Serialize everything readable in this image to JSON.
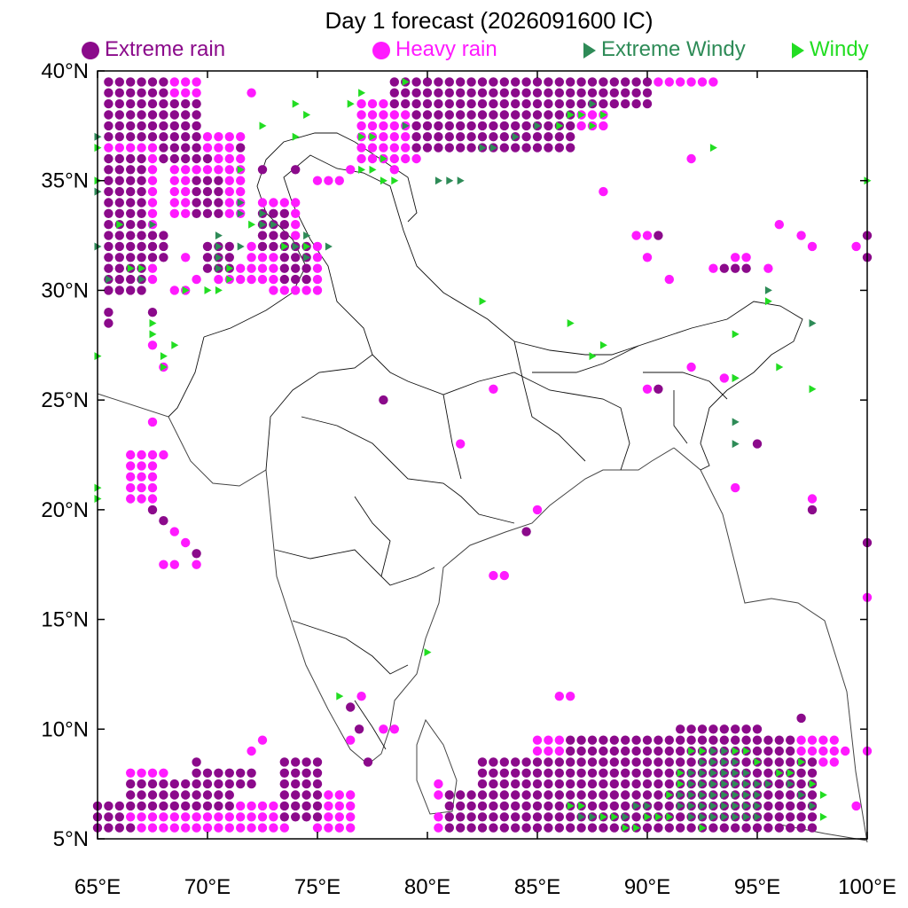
{
  "title": "Day 1 forecast (2026091600 IC)",
  "legend": [
    {
      "key": "extreme_rain",
      "label": "Extreme rain",
      "marker": "circle",
      "color": "#8b0a8b"
    },
    {
      "key": "heavy_rain",
      "label": "Heavy rain",
      "marker": "circle",
      "color": "#ff1aff"
    },
    {
      "key": "extreme_windy",
      "label": "Extreme Windy",
      "marker": "triangle",
      "color": "#2e8b57"
    },
    {
      "key": "windy",
      "label": "Windy",
      "marker": "triangle",
      "color": "#22dd22"
    }
  ],
  "map": {
    "lon_range": [
      65,
      100
    ],
    "lat_range": [
      5,
      40
    ],
    "x_ticks": [
      {
        "value": 65,
        "label": "65°E"
      },
      {
        "value": 70,
        "label": "70°E"
      },
      {
        "value": 75,
        "label": "75°E"
      },
      {
        "value": 80,
        "label": "80°E"
      },
      {
        "value": 85,
        "label": "85°E"
      },
      {
        "value": 90,
        "label": "90°E"
      },
      {
        "value": 95,
        "label": "95°E"
      },
      {
        "value": 100,
        "label": "100°E"
      }
    ],
    "y_ticks": [
      {
        "value": 40,
        "label": "40°N"
      },
      {
        "value": 35,
        "label": "35°N"
      },
      {
        "value": 30,
        "label": "30°N"
      },
      {
        "value": 25,
        "label": "25°N"
      },
      {
        "value": 20,
        "label": "20°N"
      },
      {
        "value": 15,
        "label": "15°N"
      },
      {
        "value": 10,
        "label": "10°N"
      },
      {
        "value": 5,
        "label": "5°N"
      }
    ],
    "grid_step_deg": 0.5
  },
  "markers": {
    "extreme_rain_rects": [
      [
        65.5,
        68.0,
        37.0,
        39.5
      ],
      [
        68.0,
        69.5,
        36.0,
        38.5
      ],
      [
        65.5,
        67.0,
        30.0,
        36.0
      ],
      [
        66.0,
        68.0,
        31.5,
        32.5
      ],
      [
        69.5,
        70.5,
        33.5,
        35.0
      ],
      [
        73.5,
        74.5,
        30.5,
        32.0
      ],
      [
        72.5,
        73.5,
        32.0,
        33.5
      ],
      [
        70.0,
        71.0,
        31.0,
        32.0
      ],
      [
        78.5,
        90.0,
        38.5,
        39.5
      ],
      [
        79.5,
        86.5,
        36.5,
        38.0
      ],
      [
        81.0,
        97.5,
        5.5,
        7.0
      ],
      [
        82.5,
        97.5,
        7.0,
        8.5
      ],
      [
        86.5,
        96.5,
        8.5,
        9.5
      ],
      [
        91.5,
        95.0,
        9.5,
        10.0
      ],
      [
        65.0,
        66.0,
        5.5,
        6.5
      ],
      [
        66.5,
        71.0,
        6.5,
        7.5
      ],
      [
        69.5,
        72.0,
        7.5,
        8.0
      ],
      [
        73.5,
        75.0,
        6.0,
        8.5
      ]
    ],
    "extreme_rain_points": [
      [
        65.5,
        29.0
      ],
      [
        65.5,
        28.5
      ],
      [
        67.5,
        29.0
      ],
      [
        72.5,
        35.5
      ],
      [
        74.0,
        35.5
      ],
      [
        78.0,
        25.0
      ],
      [
        84.5,
        19.0
      ],
      [
        90.5,
        32.5
      ],
      [
        93.5,
        31.0
      ],
      [
        94.0,
        31.0
      ],
      [
        94.5,
        31.0
      ],
      [
        95.0,
        23.0
      ],
      [
        97.5,
        20.0
      ],
      [
        100.0,
        32.5
      ],
      [
        100.0,
        31.5
      ],
      [
        100.0,
        18.5
      ],
      [
        76.5,
        11.0
      ],
      [
        76.9,
        10.0
      ],
      [
        77.3,
        8.5
      ],
      [
        97.0,
        10.5
      ],
      [
        67.5,
        20.0
      ],
      [
        68.0,
        19.5
      ],
      [
        69.5,
        18.0
      ],
      [
        90.5,
        25.5
      ],
      [
        69.5,
        8.5
      ],
      [
        66.5,
        5.5
      ],
      [
        71.5,
        36.5
      ],
      [
        70.0,
        36.0
      ]
    ],
    "heavy_rain_rects": [
      [
        68.0,
        69.5,
        39.0,
        39.5
      ],
      [
        65.5,
        67.5,
        35.0,
        36.5
      ],
      [
        66.0,
        67.5,
        30.5,
        34.5
      ],
      [
        68.5,
        71.5,
        33.5,
        37.0
      ],
      [
        72.5,
        74.0,
        32.5,
        34.0
      ],
      [
        72.0,
        75.0,
        30.5,
        32.0
      ],
      [
        73.0,
        75.0,
        30.0,
        30.5
      ],
      [
        70.5,
        72.0,
        30.5,
        31.0
      ],
      [
        78.5,
        82.5,
        39.0,
        39.5
      ],
      [
        77.0,
        79.5,
        36.0,
        38.5
      ],
      [
        85.0,
        88.0,
        37.5,
        38.5
      ],
      [
        90.0,
        93.0,
        39.5,
        39.5
      ],
      [
        66.5,
        67.5,
        20.5,
        22.5
      ],
      [
        80.5,
        97.5,
        5.5,
        6.0
      ],
      [
        82.5,
        91.0,
        7.0,
        8.0
      ],
      [
        85.0,
        92.0,
        8.5,
        9.5
      ],
      [
        94.0,
        98.5,
        8.5,
        9.5
      ],
      [
        65.0,
        72.5,
        5.5,
        6.5
      ],
      [
        66.5,
        68.0,
        7.0,
        8.0
      ],
      [
        75.0,
        76.5,
        5.5,
        7.0
      ],
      [
        72.0,
        73.5,
        5.5,
        6.5
      ]
    ],
    "heavy_rain_points": [
      [
        72.0,
        39.0
      ],
      [
        68.0,
        26.5
      ],
      [
        67.5,
        27.5
      ],
      [
        67.5,
        24.0
      ],
      [
        68.0,
        22.5
      ],
      [
        68.5,
        19.0
      ],
      [
        69.0,
        18.5
      ],
      [
        68.0,
        17.5
      ],
      [
        68.5,
        17.5
      ],
      [
        69.5,
        17.5
      ],
      [
        75.5,
        35.0
      ],
      [
        76.0,
        35.0
      ],
      [
        76.5,
        35.5
      ],
      [
        75.0,
        35.0
      ],
      [
        77.5,
        37.0
      ],
      [
        78.5,
        35.5
      ],
      [
        88.0,
        34.5
      ],
      [
        92.0,
        36.0
      ],
      [
        96.0,
        33.0
      ],
      [
        97.0,
        32.5
      ],
      [
        97.5,
        32.0
      ],
      [
        99.5,
        32.0
      ],
      [
        89.5,
        32.5
      ],
      [
        90.0,
        32.5
      ],
      [
        90.0,
        31.5
      ],
      [
        91.0,
        30.5
      ],
      [
        93.0,
        31.0
      ],
      [
        94.0,
        31.5
      ],
      [
        94.5,
        31.5
      ],
      [
        95.5,
        31.0
      ],
      [
        83.0,
        25.5
      ],
      [
        81.5,
        23.0
      ],
      [
        85.0,
        20.0
      ],
      [
        83.0,
        17.0
      ],
      [
        83.5,
        17.0
      ],
      [
        92.0,
        26.5
      ],
      [
        93.5,
        26.0
      ],
      [
        90.0,
        25.5
      ],
      [
        94.0,
        21.0
      ],
      [
        97.5,
        20.5
      ],
      [
        100.0,
        16.0
      ],
      [
        86.0,
        11.5
      ],
      [
        86.5,
        11.5
      ],
      [
        76.5,
        9.5
      ],
      [
        77.0,
        11.5
      ],
      [
        78.0,
        10.0
      ],
      [
        78.5,
        10.0
      ],
      [
        72.5,
        9.5
      ],
      [
        72.0,
        9.0
      ],
      [
        80.5,
        7.5
      ],
      [
        80.5,
        7.0
      ],
      [
        99.5,
        6.5
      ],
      [
        99.0,
        9.0
      ],
      [
        100.0,
        9.0
      ],
      [
        68.5,
        30.0
      ],
      [
        69.0,
        30.0
      ],
      [
        69.5,
        30.5
      ],
      [
        67.5,
        31.5
      ],
      [
        67.0,
        30.5
      ],
      [
        69.0,
        31.5
      ],
      [
        68.0,
        32.0
      ]
    ],
    "extreme_windy_points": [
      [
        65.0,
        37.0
      ],
      [
        65.0,
        34.5
      ],
      [
        65.0,
        32.0
      ],
      [
        66.0,
        33.0
      ],
      [
        65.5,
        30.5
      ],
      [
        67.0,
        30.5
      ],
      [
        67.5,
        33.0
      ],
      [
        71.5,
        34.0
      ],
      [
        71.5,
        33.5
      ],
      [
        70.5,
        32.5
      ],
      [
        70.5,
        32.0
      ],
      [
        71.5,
        32.0
      ],
      [
        70.5,
        31.5
      ],
      [
        70.5,
        31.0
      ],
      [
        72.5,
        33.5
      ],
      [
        73.0,
        33.0
      ],
      [
        72.5,
        33.0
      ],
      [
        73.5,
        32.0
      ],
      [
        74.0,
        32.0
      ],
      [
        74.5,
        31.5
      ],
      [
        74.5,
        32.5
      ],
      [
        75.5,
        32.0
      ],
      [
        79.0,
        37.5
      ],
      [
        80.5,
        35.0
      ],
      [
        81.0,
        35.0
      ],
      [
        81.5,
        35.0
      ],
      [
        82.5,
        36.5
      ],
      [
        83.0,
        36.5
      ],
      [
        84.0,
        37.0
      ],
      [
        86.5,
        38.0
      ],
      [
        87.5,
        38.5
      ],
      [
        95.5,
        30.0
      ],
      [
        97.5,
        28.5
      ],
      [
        94.0,
        26.0
      ],
      [
        94.0,
        23.0
      ],
      [
        94.0,
        24.0
      ],
      [
        85.0,
        37.5
      ],
      [
        91.5,
        7.0
      ],
      [
        92.0,
        7.0
      ],
      [
        92.5,
        7.0
      ],
      [
        93.0,
        7.0
      ],
      [
        93.5,
        7.0
      ],
      [
        94.0,
        7.0
      ],
      [
        94.5,
        7.0
      ],
      [
        95.0,
        7.0
      ],
      [
        91.5,
        6.5
      ],
      [
        92.0,
        6.5
      ],
      [
        92.5,
        6.5
      ],
      [
        93.0,
        6.5
      ],
      [
        93.5,
        6.5
      ],
      [
        94.0,
        6.5
      ],
      [
        94.5,
        6.5
      ],
      [
        95.0,
        6.5
      ],
      [
        92.0,
        7.5
      ],
      [
        92.5,
        7.5
      ],
      [
        93.0,
        7.5
      ],
      [
        93.5,
        7.5
      ],
      [
        94.0,
        7.5
      ],
      [
        94.5,
        7.5
      ],
      [
        95.0,
        7.5
      ],
      [
        95.5,
        7.5
      ],
      [
        92.0,
        8.0
      ],
      [
        92.5,
        8.0
      ],
      [
        93.0,
        8.0
      ],
      [
        93.5,
        8.0
      ],
      [
        94.0,
        8.0
      ],
      [
        94.5,
        8.0
      ],
      [
        92.5,
        8.5
      ],
      [
        93.0,
        8.5
      ],
      [
        93.5,
        8.5
      ],
      [
        94.0,
        8.5
      ],
      [
        93.0,
        9.0
      ],
      [
        93.5,
        9.0
      ],
      [
        92.0,
        6.0
      ],
      [
        92.5,
        6.0
      ],
      [
        93.0,
        6.0
      ],
      [
        93.5,
        6.0
      ],
      [
        94.0,
        6.0
      ],
      [
        94.5,
        6.0
      ],
      [
        95.0,
        6.0
      ],
      [
        96.5,
        7.5
      ],
      [
        97.0,
        7.0
      ],
      [
        97.5,
        6.5
      ],
      [
        89.0,
        6.0
      ],
      [
        89.5,
        6.5
      ],
      [
        90.0,
        6.5
      ],
      [
        87.0,
        6.0
      ],
      [
        87.5,
        6.0
      ]
    ],
    "windy_points": [
      [
        65.0,
        36.5
      ],
      [
        65.0,
        35.0
      ],
      [
        66.0,
        33.0
      ],
      [
        66.5,
        31.0
      ],
      [
        67.5,
        28.5
      ],
      [
        67.5,
        28.0
      ],
      [
        68.0,
        27.0
      ],
      [
        68.5,
        27.5
      ],
      [
        68.0,
        26.5
      ],
      [
        72.5,
        37.5
      ],
      [
        74.0,
        37.0
      ],
      [
        74.0,
        38.5
      ],
      [
        74.5,
        38.0
      ],
      [
        76.5,
        38.5
      ],
      [
        77.0,
        39.0
      ],
      [
        77.0,
        37.0
      ],
      [
        77.5,
        37.0
      ],
      [
        78.0,
        36.0
      ],
      [
        77.0,
        35.5
      ],
      [
        77.5,
        35.5
      ],
      [
        78.0,
        35.0
      ],
      [
        78.5,
        35.0
      ],
      [
        79.0,
        39.5
      ],
      [
        86.0,
        37.5
      ],
      [
        86.5,
        38.0
      ],
      [
        87.0,
        38.0
      ],
      [
        88.0,
        38.0
      ],
      [
        87.5,
        37.5
      ],
      [
        93.0,
        36.5
      ],
      [
        69.0,
        30.0
      ],
      [
        70.0,
        30.0
      ],
      [
        70.5,
        30.0
      ],
      [
        71.0,
        30.5
      ],
      [
        71.0,
        31.0
      ],
      [
        67.0,
        31.0
      ],
      [
        72.0,
        33.0
      ],
      [
        71.5,
        35.5
      ],
      [
        73.5,
        32.0
      ],
      [
        74.5,
        32.0
      ],
      [
        82.5,
        29.5
      ],
      [
        86.5,
        28.5
      ],
      [
        87.5,
        27.0
      ],
      [
        88.0,
        27.5
      ],
      [
        94.0,
        26.0
      ],
      [
        96.0,
        26.5
      ],
      [
        97.5,
        25.5
      ],
      [
        95.5,
        29.5
      ],
      [
        94.0,
        28.0
      ],
      [
        65.0,
        27.0
      ],
      [
        65.0,
        21.0
      ],
      [
        65.0,
        20.5
      ],
      [
        76.0,
        11.5
      ],
      [
        80.0,
        13.5
      ],
      [
        100.0,
        35.0
      ],
      [
        86.5,
        6.5
      ],
      [
        87.0,
        6.5
      ],
      [
        88.0,
        6.0
      ],
      [
        88.5,
        6.0
      ],
      [
        89.0,
        5.5
      ],
      [
        89.5,
        5.5
      ],
      [
        90.0,
        6.0
      ],
      [
        90.5,
        6.0
      ],
      [
        91.0,
        6.0
      ],
      [
        92.0,
        9.0
      ],
      [
        92.5,
        9.0
      ],
      [
        94.0,
        9.0
      ],
      [
        94.5,
        9.0
      ],
      [
        95.0,
        8.5
      ],
      [
        96.0,
        8.0
      ],
      [
        96.5,
        8.0
      ],
      [
        97.0,
        8.5
      ],
      [
        97.5,
        7.5
      ],
      [
        98.0,
        7.0
      ],
      [
        98.0,
        6.0
      ],
      [
        91.5,
        8.0
      ],
      [
        91.5,
        7.5
      ],
      [
        91.0,
        7.0
      ],
      [
        92.5,
        5.5
      ]
    ]
  }
}
